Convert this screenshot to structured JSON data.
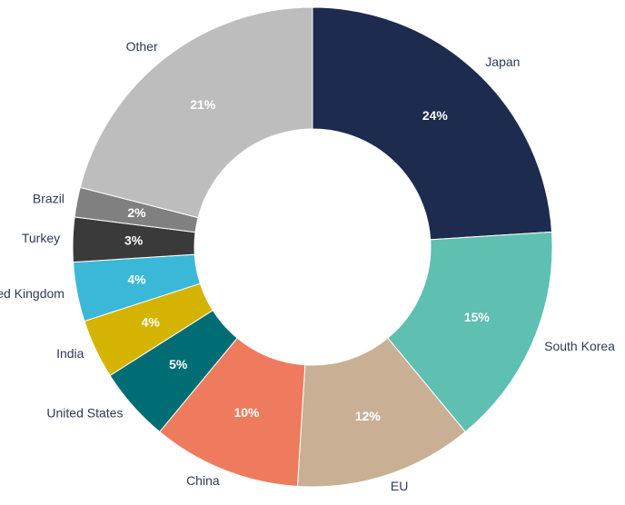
{
  "chart_data": {
    "type": "donut",
    "categories": [
      "Japan",
      "South Korea",
      "EU",
      "China",
      "United States",
      "India",
      "United Kingdom",
      "Turkey",
      "Brazil",
      "Other"
    ],
    "values": [
      24,
      15,
      12,
      10,
      5,
      4,
      4,
      3,
      2,
      21
    ],
    "value_labels": [
      "24%",
      "15%",
      "12%",
      "10%",
      "5%",
      "4%",
      "4%",
      "3%",
      "2%",
      "21%"
    ],
    "colors": [
      "#1c2b4e",
      "#5fbfb1",
      "#c9b095",
      "#ee7b5e",
      "#006d75",
      "#d4b400",
      "#3bb8d8",
      "#3a3a3a",
      "#808080",
      "#bdbdbd"
    ]
  }
}
